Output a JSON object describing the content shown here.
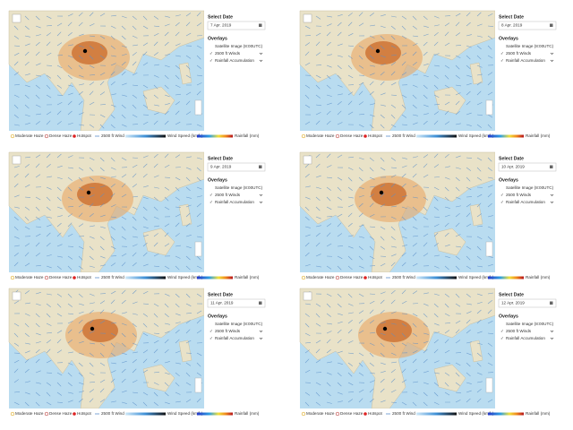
{
  "panels": [
    {
      "date": "7 Apr. 2019"
    },
    {
      "date": "8 Apr. 2019"
    },
    {
      "date": "9 Apr. 2019"
    },
    {
      "date": "10 Apr. 2019"
    },
    {
      "date": "11 Apr. 2019"
    },
    {
      "date": "12 Apr. 2019"
    }
  ],
  "sidebar": {
    "title": "Select Date",
    "overlays_title": "Overlays",
    "overlays": [
      "Satellite Image (8:00UTC)",
      "2500 ft Winds",
      "Rainfall Accumulation"
    ]
  },
  "legend": {
    "moderate": "Moderate Haze",
    "dense": "Dense Haze",
    "hotspot": "Hotspot",
    "wind": "2500 ft Wind",
    "wind_speed": "Wind Speed (km/h)",
    "rainfall": "Rainfall (mm)"
  }
}
